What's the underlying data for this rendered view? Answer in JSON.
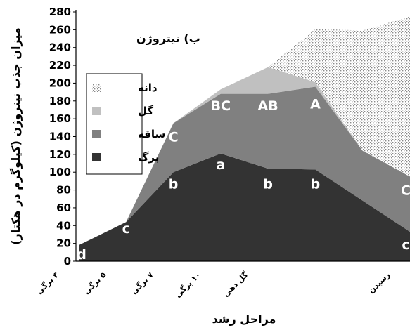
{
  "chart_data": {
    "type": "area",
    "panel_label": "ب) نیتروژن",
    "ylabel": "میزان جذب نیتروژن (کیلوگرم در هکتار)",
    "xlabel": "مراحل رشد",
    "ylim": [
      0,
      280
    ],
    "yticks": [
      0,
      20,
      40,
      60,
      80,
      100,
      120,
      140,
      160,
      180,
      200,
      220,
      240,
      260,
      280
    ],
    "x": [
      0,
      1,
      2,
      3,
      4,
      5,
      6,
      7
    ],
    "categories": [
      {
        "label": "۳ برگی",
        "x": 0
      },
      {
        "label": "۵ برگی",
        "x": 1
      },
      {
        "label": "۷ برگی",
        "x": 2
      },
      {
        "label": "۱۰ برگی",
        "x": 3
      },
      {
        "label": "گل دهی",
        "x": 4
      },
      {
        "label": "رسیدن",
        "x": 7
      }
    ],
    "series": [
      {
        "name": "برگ",
        "color": "#333333",
        "pattern": "solid",
        "values": [
          18,
          44,
          100,
          121,
          104,
          103,
          68,
          33
        ]
      },
      {
        "name": "ساقه",
        "color": "#808080",
        "pattern": "solid",
        "values": [
          0,
          0,
          55,
          67,
          84,
          93,
          56,
          62
        ]
      },
      {
        "name": "گل",
        "color": "#c0c0c0",
        "pattern": "solid",
        "values": [
          0,
          0,
          0,
          5,
          30,
          5,
          0,
          0
        ]
      },
      {
        "name": "دانه",
        "color": "#d9d9d9",
        "pattern": "dots",
        "values": [
          0,
          0,
          0,
          0,
          0,
          60,
          135,
          180
        ]
      }
    ],
    "annotations": [
      {
        "text": "d",
        "x": 0,
        "y": 8,
        "color": "#ffffff"
      },
      {
        "text": "c",
        "x": 1,
        "y": 37,
        "color": "#ffffff"
      },
      {
        "text": "b",
        "x": 2,
        "y": 87,
        "color": "#ffffff"
      },
      {
        "text": "a",
        "x": 3,
        "y": 109,
        "color": "#ffffff"
      },
      {
        "text": "b",
        "x": 4,
        "y": 87,
        "color": "#ffffff"
      },
      {
        "text": "b",
        "x": 5,
        "y": 87,
        "color": "#ffffff"
      },
      {
        "text": "c",
        "x": 7,
        "y": 19,
        "color": "#ffffff"
      },
      {
        "text": "C",
        "x": 2,
        "y": 140,
        "color": "#ffffff"
      },
      {
        "text": "BC",
        "x": 3,
        "y": 175,
        "color": "#ffffff"
      },
      {
        "text": "AB",
        "x": 4,
        "y": 175,
        "color": "#ffffff"
      },
      {
        "text": "A",
        "x": 5,
        "y": 177,
        "color": "#ffffff"
      },
      {
        "text": "C",
        "x": 7,
        "y": 80,
        "color": "#ffffff"
      }
    ],
    "legend": {
      "position": "left",
      "order": [
        "دانه",
        "گل",
        "ساقه",
        "برگ"
      ]
    },
    "grid": false
  }
}
